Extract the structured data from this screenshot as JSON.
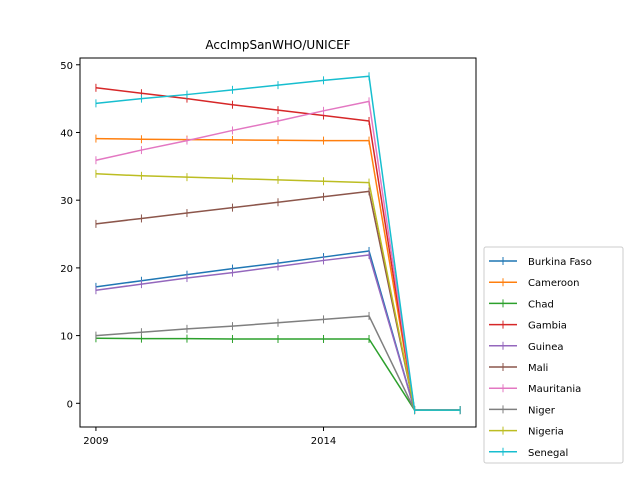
{
  "chart_data": {
    "type": "line",
    "title": "AccImpSanWHO/UNICEF",
    "xlabel": "",
    "ylabel": "",
    "x": [
      2009,
      2010,
      2011,
      2012,
      2013,
      2014,
      2015,
      2016,
      2017
    ],
    "xlim": [
      2008.65,
      2017.35
    ],
    "ylim": [
      -3.5,
      51
    ],
    "x_ticks": [
      2009,
      2014
    ],
    "y_ticks": [
      0,
      10,
      20,
      30,
      40,
      50
    ],
    "grid": false,
    "legend_placement": "outside-right-bottom",
    "series": [
      {
        "name": "Burkina Faso",
        "color": "#1f77b4",
        "values": [
          17.2,
          18.1,
          19.0,
          19.9,
          20.7,
          21.6,
          22.5,
          -1,
          -1
        ]
      },
      {
        "name": "Cameroon",
        "color": "#ff7f0e",
        "values": [
          39.1,
          39.0,
          38.95,
          38.9,
          38.85,
          38.8,
          38.8,
          -1,
          -1
        ]
      },
      {
        "name": "Chad",
        "color": "#2ca02c",
        "values": [
          9.6,
          9.55,
          9.55,
          9.5,
          9.5,
          9.5,
          9.5,
          -1,
          -1
        ]
      },
      {
        "name": "Gambia",
        "color": "#d62728",
        "values": [
          46.6,
          45.8,
          45.0,
          44.1,
          43.3,
          42.5,
          41.7,
          -1,
          -1
        ]
      },
      {
        "name": "Guinea",
        "color": "#9467bd",
        "values": [
          16.7,
          17.6,
          18.5,
          19.3,
          20.2,
          21.1,
          21.9,
          -1,
          -1
        ]
      },
      {
        "name": "Mali",
        "color": "#8c564b",
        "values": [
          26.5,
          27.3,
          28.1,
          28.9,
          29.7,
          30.5,
          31.3,
          -1,
          -1
        ]
      },
      {
        "name": "Mauritania",
        "color": "#e377c2",
        "values": [
          35.9,
          37.4,
          38.8,
          40.3,
          41.7,
          43.2,
          44.6,
          -1,
          -1
        ]
      },
      {
        "name": "Niger",
        "color": "#7f7f7f",
        "values": [
          10.0,
          10.5,
          11.0,
          11.4,
          11.9,
          12.4,
          12.9,
          -1,
          -1
        ]
      },
      {
        "name": "Nigeria",
        "color": "#bcbd22",
        "values": [
          33.9,
          33.6,
          33.4,
          33.2,
          33.0,
          32.8,
          32.6,
          -1,
          -1
        ]
      },
      {
        "name": "Senegal",
        "color": "#17becf",
        "values": [
          44.3,
          45.0,
          45.6,
          46.3,
          47.0,
          47.7,
          48.3,
          -1,
          -1
        ]
      }
    ]
  }
}
